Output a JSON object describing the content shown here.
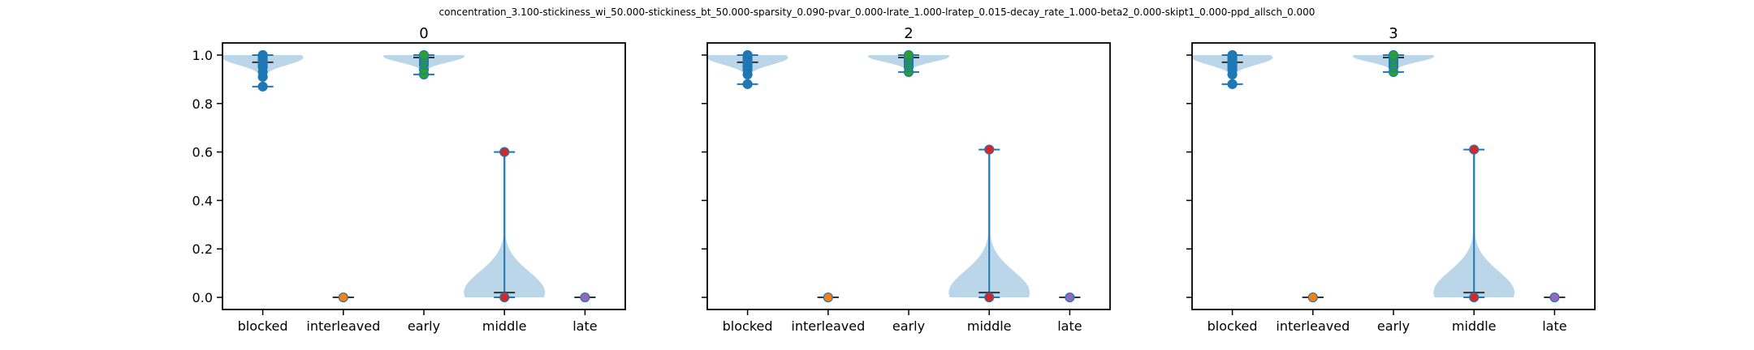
{
  "figure": {
    "suptitle": "concentration_3.100-stickiness_wi_50.000-stickiness_bt_50.000-sparsity_0.090-pvar_0.000-lrate_1.000-lratep_0.015-decay_rate_1.000-beta2_0.000-skipt1_0.000-ppd_allsch_0.000"
  },
  "chart_data": [
    {
      "type": "violin",
      "title": "0",
      "categories": [
        "blocked",
        "interleaved",
        "early",
        "middle",
        "late"
      ],
      "ylim": [
        -0.05,
        1.05
      ],
      "yticks": [
        "0.0",
        "0.2",
        "0.4",
        "0.6",
        "0.8",
        "1.0"
      ],
      "series": [
        {
          "category": "blocked",
          "min": 0.87,
          "max": 1.0,
          "median": 0.97,
          "mode": 0.99,
          "points": [
            0.87,
            0.91,
            0.93,
            0.95,
            0.96,
            0.97,
            0.98,
            0.99,
            1.0
          ],
          "color": "#1f77b4"
        },
        {
          "category": "interleaved",
          "min": 0.0,
          "max": 0.0,
          "median": 0.0,
          "mode": 0.0,
          "points": [
            0.0
          ],
          "color": "#ff7f0e"
        },
        {
          "category": "early",
          "min": 0.92,
          "max": 1.0,
          "median": 0.99,
          "mode": 0.995,
          "points": [
            0.92,
            0.94,
            0.96,
            0.97,
            0.98,
            0.99,
            1.0
          ],
          "color": "#2ca02c"
        },
        {
          "category": "middle",
          "min": 0.0,
          "max": 0.6,
          "median": 0.02,
          "mode": 0.02,
          "points": [
            0.0,
            0.6
          ],
          "color": "#d62728"
        },
        {
          "category": "late",
          "min": 0.0,
          "max": 0.0,
          "median": 0.0,
          "mode": 0.0,
          "points": [
            0.0
          ],
          "color": "#9467bd"
        }
      ]
    },
    {
      "type": "violin",
      "title": "2",
      "categories": [
        "blocked",
        "interleaved",
        "early",
        "middle",
        "late"
      ],
      "ylim": [
        -0.05,
        1.05
      ],
      "yticks": [
        "0.0",
        "0.2",
        "0.4",
        "0.6",
        "0.8",
        "1.0"
      ],
      "series": [
        {
          "category": "blocked",
          "min": 0.88,
          "max": 1.0,
          "median": 0.97,
          "mode": 0.99,
          "points": [
            0.88,
            0.92,
            0.94,
            0.95,
            0.96,
            0.97,
            0.98,
            0.99,
            1.0
          ],
          "color": "#1f77b4"
        },
        {
          "category": "interleaved",
          "min": 0.0,
          "max": 0.0,
          "median": 0.0,
          "mode": 0.0,
          "points": [
            0.0
          ],
          "color": "#ff7f0e"
        },
        {
          "category": "early",
          "min": 0.93,
          "max": 1.0,
          "median": 0.99,
          "mode": 0.995,
          "points": [
            0.93,
            0.95,
            0.96,
            0.97,
            0.98,
            0.99,
            1.0
          ],
          "color": "#2ca02c"
        },
        {
          "category": "middle",
          "min": 0.0,
          "max": 0.61,
          "median": 0.02,
          "mode": 0.02,
          "points": [
            0.0,
            0.61
          ],
          "color": "#d62728"
        },
        {
          "category": "late",
          "min": 0.0,
          "max": 0.0,
          "median": 0.0,
          "mode": 0.0,
          "points": [
            0.0
          ],
          "color": "#9467bd"
        }
      ]
    },
    {
      "type": "violin",
      "title": "3",
      "categories": [
        "blocked",
        "interleaved",
        "early",
        "middle",
        "late"
      ],
      "ylim": [
        -0.05,
        1.05
      ],
      "yticks": [
        "0.0",
        "0.2",
        "0.4",
        "0.6",
        "0.8",
        "1.0"
      ],
      "series": [
        {
          "category": "blocked",
          "min": 0.88,
          "max": 1.0,
          "median": 0.97,
          "mode": 0.99,
          "points": [
            0.88,
            0.92,
            0.94,
            0.95,
            0.96,
            0.97,
            0.98,
            0.99,
            1.0
          ],
          "color": "#1f77b4"
        },
        {
          "category": "interleaved",
          "min": 0.0,
          "max": 0.0,
          "median": 0.0,
          "mode": 0.0,
          "points": [
            0.0
          ],
          "color": "#ff7f0e"
        },
        {
          "category": "early",
          "min": 0.93,
          "max": 1.0,
          "median": 0.99,
          "mode": 0.995,
          "points": [
            0.93,
            0.95,
            0.96,
            0.97,
            0.98,
            0.99,
            1.0
          ],
          "color": "#2ca02c"
        },
        {
          "category": "middle",
          "min": 0.0,
          "max": 0.61,
          "median": 0.02,
          "mode": 0.02,
          "points": [
            0.0,
            0.61
          ],
          "color": "#d62728"
        },
        {
          "category": "late",
          "min": 0.0,
          "max": 0.0,
          "median": 0.0,
          "mode": 0.0,
          "points": [
            0.0
          ],
          "color": "#9467bd"
        }
      ]
    }
  ],
  "style": {
    "body_color": "#1f77b4",
    "body_opacity": 0.3,
    "line_color": "#1f77b4",
    "median_color": "#333333"
  }
}
